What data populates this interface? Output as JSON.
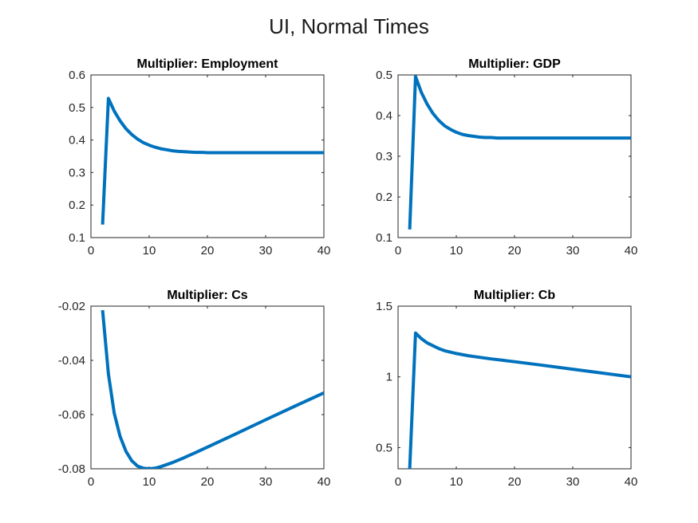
{
  "figure": {
    "title": "UI, Normal Times"
  },
  "chart_data": [
    {
      "type": "line",
      "title": "Multiplier: Employment",
      "xlabel": "",
      "ylabel": "",
      "xlim": [
        0,
        40
      ],
      "ylim": [
        0.1,
        0.6
      ],
      "xticks": [
        "0",
        "10",
        "20",
        "30",
        "40"
      ],
      "yticks": [
        "0.1",
        "0.2",
        "0.3",
        "0.4",
        "0.5",
        "0.6"
      ],
      "color": "#0072BD",
      "series": [
        {
          "x": [
            2,
            3,
            4,
            5,
            6,
            7,
            8,
            9,
            10,
            11,
            12,
            13,
            14,
            15,
            16,
            17,
            18,
            19,
            20,
            22,
            24,
            26,
            28,
            30,
            32,
            34,
            36,
            38,
            40
          ],
          "y": [
            0.14,
            0.528,
            0.489,
            0.459,
            0.435,
            0.417,
            0.403,
            0.392,
            0.384,
            0.378,
            0.373,
            0.37,
            0.367,
            0.365,
            0.364,
            0.363,
            0.362,
            0.362,
            0.361,
            0.361,
            0.361,
            0.361,
            0.361,
            0.361,
            0.361,
            0.361,
            0.361,
            0.361,
            0.361
          ]
        }
      ]
    },
    {
      "type": "line",
      "title": "Multiplier: GDP",
      "xlabel": "",
      "ylabel": "",
      "xlim": [
        0,
        40
      ],
      "ylim": [
        0.1,
        0.5
      ],
      "xticks": [
        "0",
        "10",
        "20",
        "30",
        "40"
      ],
      "yticks": [
        "0.1",
        "0.2",
        "0.3",
        "0.4",
        "0.5"
      ],
      "color": "#0072BD",
      "series": [
        {
          "x": [
            2,
            3,
            4,
            5,
            6,
            7,
            8,
            9,
            10,
            11,
            12,
            13,
            14,
            15,
            16,
            17,
            18,
            19,
            20,
            22,
            24,
            26,
            28,
            30,
            32,
            34,
            36,
            38,
            40
          ],
          "y": [
            0.12,
            0.496,
            0.457,
            0.428,
            0.405,
            0.388,
            0.375,
            0.366,
            0.359,
            0.354,
            0.351,
            0.349,
            0.347,
            0.346,
            0.346,
            0.345,
            0.345,
            0.345,
            0.345,
            0.345,
            0.345,
            0.345,
            0.345,
            0.345,
            0.345,
            0.345,
            0.345,
            0.345,
            0.345
          ]
        }
      ]
    },
    {
      "type": "line",
      "title": "Multiplier: Cs",
      "xlabel": "",
      "ylabel": "",
      "xlim": [
        0,
        40
      ],
      "ylim": [
        -0.08,
        -0.02
      ],
      "xticks": [
        "0",
        "10",
        "20",
        "30",
        "40"
      ],
      "yticks": [
        "-0.08",
        "-0.06",
        "-0.04",
        "-0.02"
      ],
      "color": "#0072BD",
      "series": [
        {
          "x": [
            2,
            3,
            4,
            5,
            6,
            7,
            8,
            9,
            10,
            11,
            12,
            14,
            16,
            18,
            20,
            25,
            30,
            35,
            40
          ],
          "y": [
            -0.0215,
            -0.045,
            -0.0595,
            -0.068,
            -0.0735,
            -0.077,
            -0.079,
            -0.0798,
            -0.08,
            -0.0798,
            -0.0792,
            -0.0777,
            -0.0759,
            -0.074,
            -0.072,
            -0.067,
            -0.0619,
            -0.0569,
            -0.052
          ]
        }
      ]
    },
    {
      "type": "line",
      "title": "Multiplier: Cb",
      "xlabel": "",
      "ylabel": "",
      "xlim": [
        0,
        40
      ],
      "ylim": [
        0.35,
        1.5
      ],
      "xticks": [
        "0",
        "10",
        "20",
        "30",
        "40"
      ],
      "yticks": [
        "0.5",
        "1",
        "1.5"
      ],
      "color": "#0072BD",
      "series": [
        {
          "x": [
            2,
            3,
            4,
            5,
            6,
            7,
            8,
            9,
            10,
            12,
            14,
            16,
            18,
            20,
            25,
            30,
            35,
            40
          ],
          "y": [
            0.35,
            1.31,
            1.27,
            1.24,
            1.22,
            1.2,
            1.185,
            1.175,
            1.165,
            1.15,
            1.138,
            1.127,
            1.117,
            1.107,
            1.081,
            1.054,
            1.027,
            1.0
          ]
        }
      ]
    }
  ]
}
